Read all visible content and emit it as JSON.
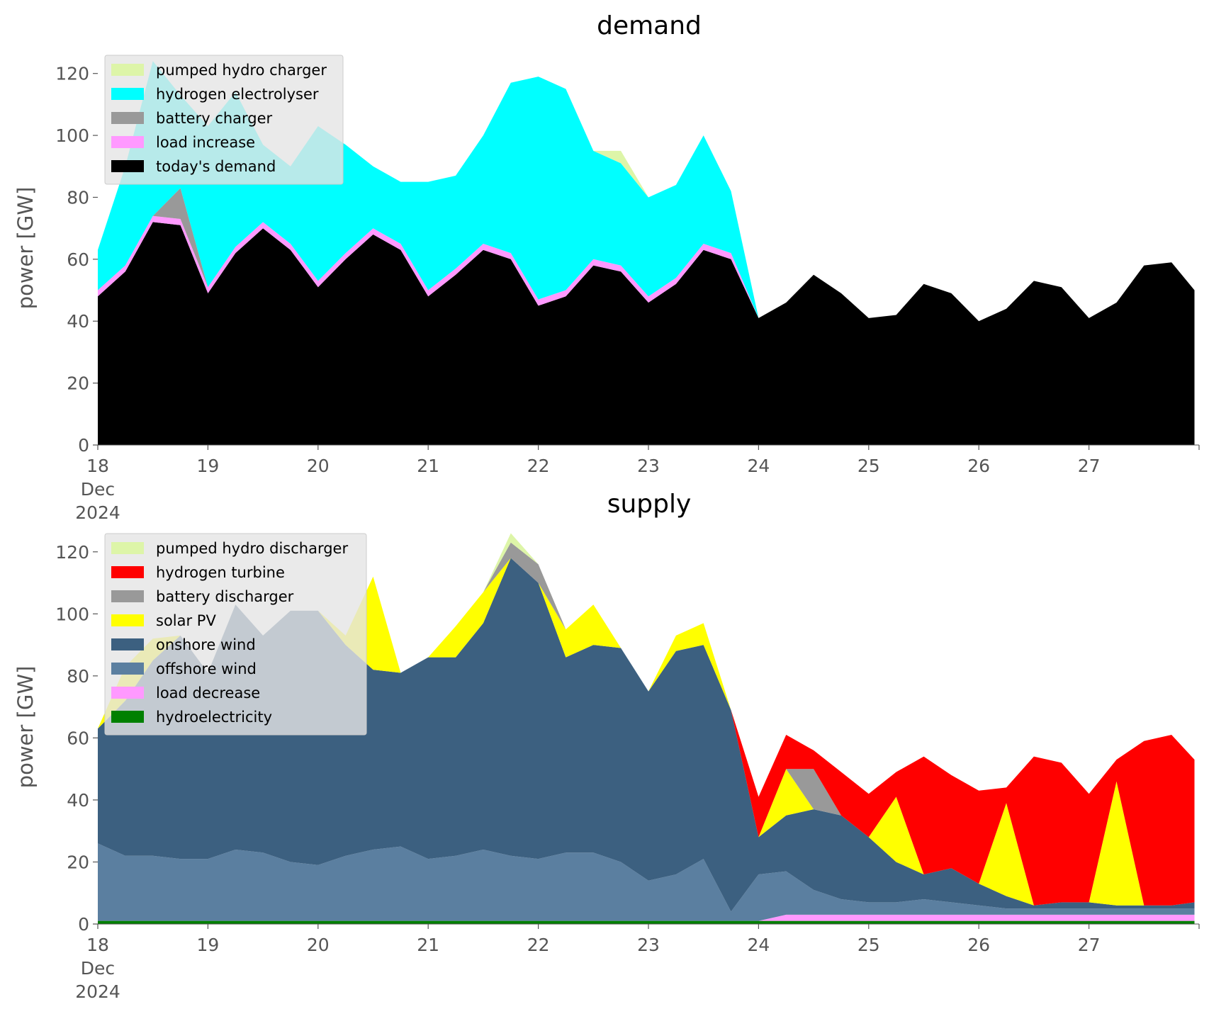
{
  "chart_data": [
    {
      "type": "area",
      "title": "demand",
      "ylabel": "power [GW]",
      "xlabel": "",
      "ylim": [
        0,
        130
      ],
      "xlim": [
        "2024-12-18",
        "2024-12-28"
      ],
      "x_tick_labels": [
        "18\nDec\n2024",
        "19",
        "20",
        "21",
        "22",
        "23",
        "24",
        "25",
        "26",
        "27"
      ],
      "y_tick_labels": [
        "0",
        "20",
        "40",
        "60",
        "80",
        "100",
        "120"
      ],
      "stacked": true,
      "legend_position": "upper-left",
      "grid": false,
      "x": [
        "2024-12-18 00:00",
        "2024-12-18 06:00",
        "2024-12-18 12:00",
        "2024-12-18 18:00",
        "2024-12-19 00:00",
        "2024-12-19 06:00",
        "2024-12-19 12:00",
        "2024-12-19 18:00",
        "2024-12-20 00:00",
        "2024-12-20 06:00",
        "2024-12-20 12:00",
        "2024-12-20 18:00",
        "2024-12-21 00:00",
        "2024-12-21 06:00",
        "2024-12-21 12:00",
        "2024-12-21 18:00",
        "2024-12-22 00:00",
        "2024-12-22 06:00",
        "2024-12-22 12:00",
        "2024-12-22 18:00",
        "2024-12-23 00:00",
        "2024-12-23 06:00",
        "2024-12-23 12:00",
        "2024-12-23 18:00",
        "2024-12-24 00:00",
        "2024-12-24 06:00",
        "2024-12-24 12:00",
        "2024-12-24 18:00",
        "2024-12-25 00:00",
        "2024-12-25 06:00",
        "2024-12-25 12:00",
        "2024-12-25 18:00",
        "2024-12-26 00:00",
        "2024-12-26 06:00",
        "2024-12-26 12:00",
        "2024-12-26 18:00",
        "2024-12-27 00:00",
        "2024-12-27 06:00",
        "2024-12-27 12:00",
        "2024-12-27 18:00",
        "2024-12-27 23:00"
      ],
      "series": [
        {
          "name": "today's demand",
          "color": "#000000",
          "values": [
            48,
            56,
            72,
            71,
            49,
            62,
            70,
            63,
            51,
            60,
            68,
            63,
            48,
            55,
            63,
            60,
            45,
            48,
            58,
            56,
            46,
            52,
            63,
            60,
            41,
            46,
            55,
            49,
            41,
            42,
            52,
            49,
            40,
            44,
            53,
            51,
            41,
            46,
            58,
            59,
            50
          ]
        },
        {
          "name": "load increase",
          "color": "#ff99ff",
          "values": [
            2,
            2,
            2,
            2,
            2,
            2,
            2,
            2,
            2,
            2,
            2,
            2,
            2,
            2,
            2,
            2,
            2,
            2,
            2,
            2,
            2,
            2,
            2,
            2,
            0,
            0,
            0,
            0,
            0,
            0,
            0,
            0,
            0,
            0,
            0,
            0,
            0,
            0,
            0,
            0,
            0
          ]
        },
        {
          "name": "battery charger",
          "color": "#999999",
          "values": [
            0,
            0,
            0,
            10,
            0,
            0,
            0,
            0,
            0,
            0,
            0,
            0,
            0,
            0,
            0,
            0,
            0,
            0,
            0,
            0,
            0,
            0,
            0,
            0,
            0,
            0,
            0,
            0,
            0,
            0,
            0,
            0,
            0,
            0,
            0,
            0,
            0,
            0,
            0,
            0,
            0
          ]
        },
        {
          "name": "hydrogen electrolyser",
          "color": "#00ffff",
          "values": [
            13,
            32,
            50,
            30,
            52,
            50,
            25,
            25,
            50,
            35,
            20,
            20,
            35,
            30,
            35,
            55,
            72,
            65,
            35,
            33,
            32,
            30,
            35,
            20,
            0,
            0,
            0,
            0,
            0,
            0,
            0,
            0,
            0,
            0,
            0,
            0,
            0,
            0,
            0,
            0,
            0
          ]
        },
        {
          "name": "pumped hydro charger",
          "color": "#ddf5a8",
          "values": [
            0,
            0,
            0,
            0,
            0,
            0,
            0,
            0,
            0,
            0,
            0,
            0,
            0,
            0,
            0,
            0,
            0,
            0,
            0,
            4,
            0,
            0,
            0,
            0,
            0,
            0,
            0,
            0,
            0,
            0,
            0,
            0,
            0,
            0,
            0,
            0,
            0,
            0,
            0,
            0,
            0
          ]
        }
      ]
    },
    {
      "type": "area",
      "title": "supply",
      "ylabel": "power [GW]",
      "xlabel": "",
      "ylim": [
        0,
        130
      ],
      "xlim": [
        "2024-12-18",
        "2024-12-28"
      ],
      "x_tick_labels": [
        "18\nDec\n2024",
        "19",
        "20",
        "21",
        "22",
        "23",
        "24",
        "25",
        "26",
        "27"
      ],
      "y_tick_labels": [
        "0",
        "20",
        "40",
        "60",
        "80",
        "100",
        "120"
      ],
      "stacked": true,
      "legend_position": "upper-left",
      "grid": false,
      "x": [
        "2024-12-18 00:00",
        "2024-12-18 06:00",
        "2024-12-18 12:00",
        "2024-12-18 18:00",
        "2024-12-19 00:00",
        "2024-12-19 06:00",
        "2024-12-19 12:00",
        "2024-12-19 18:00",
        "2024-12-20 00:00",
        "2024-12-20 06:00",
        "2024-12-20 12:00",
        "2024-12-20 18:00",
        "2024-12-21 00:00",
        "2024-12-21 06:00",
        "2024-12-21 12:00",
        "2024-12-21 18:00",
        "2024-12-22 00:00",
        "2024-12-22 06:00",
        "2024-12-22 12:00",
        "2024-12-22 18:00",
        "2024-12-23 00:00",
        "2024-12-23 06:00",
        "2024-12-23 12:00",
        "2024-12-23 18:00",
        "2024-12-24 00:00",
        "2024-12-24 06:00",
        "2024-12-24 12:00",
        "2024-12-24 18:00",
        "2024-12-25 00:00",
        "2024-12-25 06:00",
        "2024-12-25 12:00",
        "2024-12-25 18:00",
        "2024-12-26 00:00",
        "2024-12-26 06:00",
        "2024-12-26 12:00",
        "2024-12-26 18:00",
        "2024-12-27 00:00",
        "2024-12-27 06:00",
        "2024-12-27 12:00",
        "2024-12-27 18:00",
        "2024-12-27 23:00"
      ],
      "series": [
        {
          "name": "hydroelectricity",
          "color": "#008000",
          "values": [
            1,
            1,
            1,
            1,
            1,
            1,
            1,
            1,
            1,
            1,
            1,
            1,
            1,
            1,
            1,
            1,
            1,
            1,
            1,
            1,
            1,
            1,
            1,
            1,
            1,
            1,
            1,
            1,
            1,
            1,
            1,
            1,
            1,
            1,
            1,
            1,
            1,
            1,
            1,
            1,
            1
          ]
        },
        {
          "name": "load decrease",
          "color": "#ff99ff",
          "values": [
            0,
            0,
            0,
            0,
            0,
            0,
            0,
            0,
            0,
            0,
            0,
            0,
            0,
            0,
            0,
            0,
            0,
            0,
            0,
            0,
            0,
            0,
            0,
            0,
            0,
            2,
            2,
            2,
            2,
            2,
            2,
            2,
            2,
            2,
            2,
            2,
            2,
            2,
            2,
            2,
            2
          ]
        },
        {
          "name": "offshore wind",
          "color": "#5b7fa0",
          "values": [
            25,
            21,
            21,
            20,
            20,
            23,
            22,
            19,
            18,
            21,
            23,
            24,
            20,
            21,
            23,
            21,
            20,
            22,
            22,
            19,
            13,
            15,
            20,
            3,
            15,
            14,
            8,
            5,
            4,
            4,
            5,
            4,
            3,
            2,
            2,
            2,
            2,
            2,
            2,
            2,
            2
          ]
        },
        {
          "name": "onshore wind",
          "color": "#3c6080",
          "values": [
            37,
            50,
            63,
            72,
            60,
            79,
            70,
            81,
            82,
            68,
            58,
            56,
            65,
            64,
            73,
            96,
            89,
            63,
            67,
            69,
            61,
            72,
            69,
            65,
            12,
            18,
            26,
            27,
            21,
            13,
            8,
            11,
            7,
            4,
            1,
            2,
            2,
            1,
            1,
            1,
            2
          ]
        },
        {
          "name": "solar PV",
          "color": "#ffff00",
          "values": [
            0,
            11,
            7,
            0,
            0,
            0,
            0,
            0,
            0,
            3,
            30,
            0,
            0,
            10,
            10,
            0,
            0,
            9,
            13,
            0,
            0,
            5,
            7,
            0,
            0,
            15,
            0,
            0,
            0,
            21,
            0,
            0,
            0,
            30,
            0,
            0,
            0,
            40,
            0,
            0,
            0
          ]
        },
        {
          "name": "battery discharger",
          "color": "#999999",
          "values": [
            0,
            0,
            0,
            0,
            0,
            0,
            0,
            0,
            0,
            0,
            0,
            0,
            0,
            0,
            0,
            5,
            6,
            0,
            0,
            0,
            0,
            0,
            0,
            0,
            0,
            0,
            13,
            0,
            0,
            0,
            0,
            0,
            0,
            0,
            0,
            0,
            0,
            0,
            0,
            0,
            0
          ]
        },
        {
          "name": "hydrogen turbine",
          "color": "#ff0000",
          "values": [
            0,
            0,
            0,
            0,
            0,
            0,
            0,
            0,
            0,
            0,
            0,
            0,
            0,
            0,
            0,
            0,
            0,
            0,
            0,
            0,
            0,
            0,
            0,
            0,
            13,
            11,
            6,
            14,
            14,
            8,
            38,
            30,
            30,
            5,
            48,
            45,
            35,
            7,
            53,
            55,
            46
          ]
        },
        {
          "name": "pumped hydro discharger",
          "color": "#ddf5a8",
          "values": [
            0,
            0,
            0,
            0,
            0,
            0,
            0,
            0,
            0,
            0,
            0,
            0,
            0,
            0,
            0,
            3,
            0,
            0,
            0,
            0,
            0,
            0,
            0,
            0,
            0,
            0,
            0,
            0,
            0,
            0,
            0,
            0,
            0,
            0,
            0,
            0,
            0,
            0,
            0,
            0,
            0
          ]
        }
      ]
    }
  ],
  "legends": [
    [
      "pumped hydro charger",
      "hydrogen electrolyser",
      "battery charger",
      "load increase",
      "today's demand"
    ],
    [
      "pumped hydro discharger",
      "hydrogen turbine",
      "battery discharger",
      "solar PV",
      "onshore wind",
      "offshore wind",
      "load decrease",
      "hydroelectricity"
    ]
  ]
}
